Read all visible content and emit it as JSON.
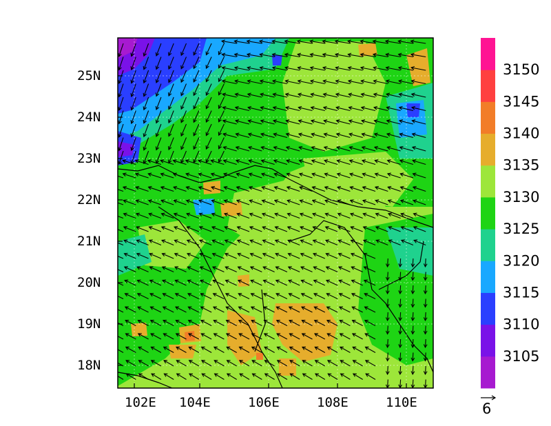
{
  "map": {
    "x_ticks": [
      "102E",
      "104E",
      "106E",
      "108E",
      "110E"
    ],
    "y_ticks": [
      "18N",
      "19N",
      "20N",
      "21N",
      "22N",
      "23N",
      "24N",
      "25N"
    ],
    "lon_range": [
      101.7,
      110.8
    ],
    "lat_range": [
      17.4,
      25.9
    ]
  },
  "colorbar": {
    "labels": [
      "3105",
      "3110",
      "3115",
      "3120",
      "3125",
      "3130",
      "3135",
      "3140",
      "3145",
      "3150"
    ],
    "colors": [
      "#a71ad0",
      "#7a12e8",
      "#2a3fff",
      "#19a8ff",
      "#1fd28e",
      "#1ed414",
      "#9de63a",
      "#e6ad2c",
      "#f27d28",
      "#ff4040",
      "#ff1493"
    ]
  },
  "vector_reference": {
    "label": "6"
  }
}
